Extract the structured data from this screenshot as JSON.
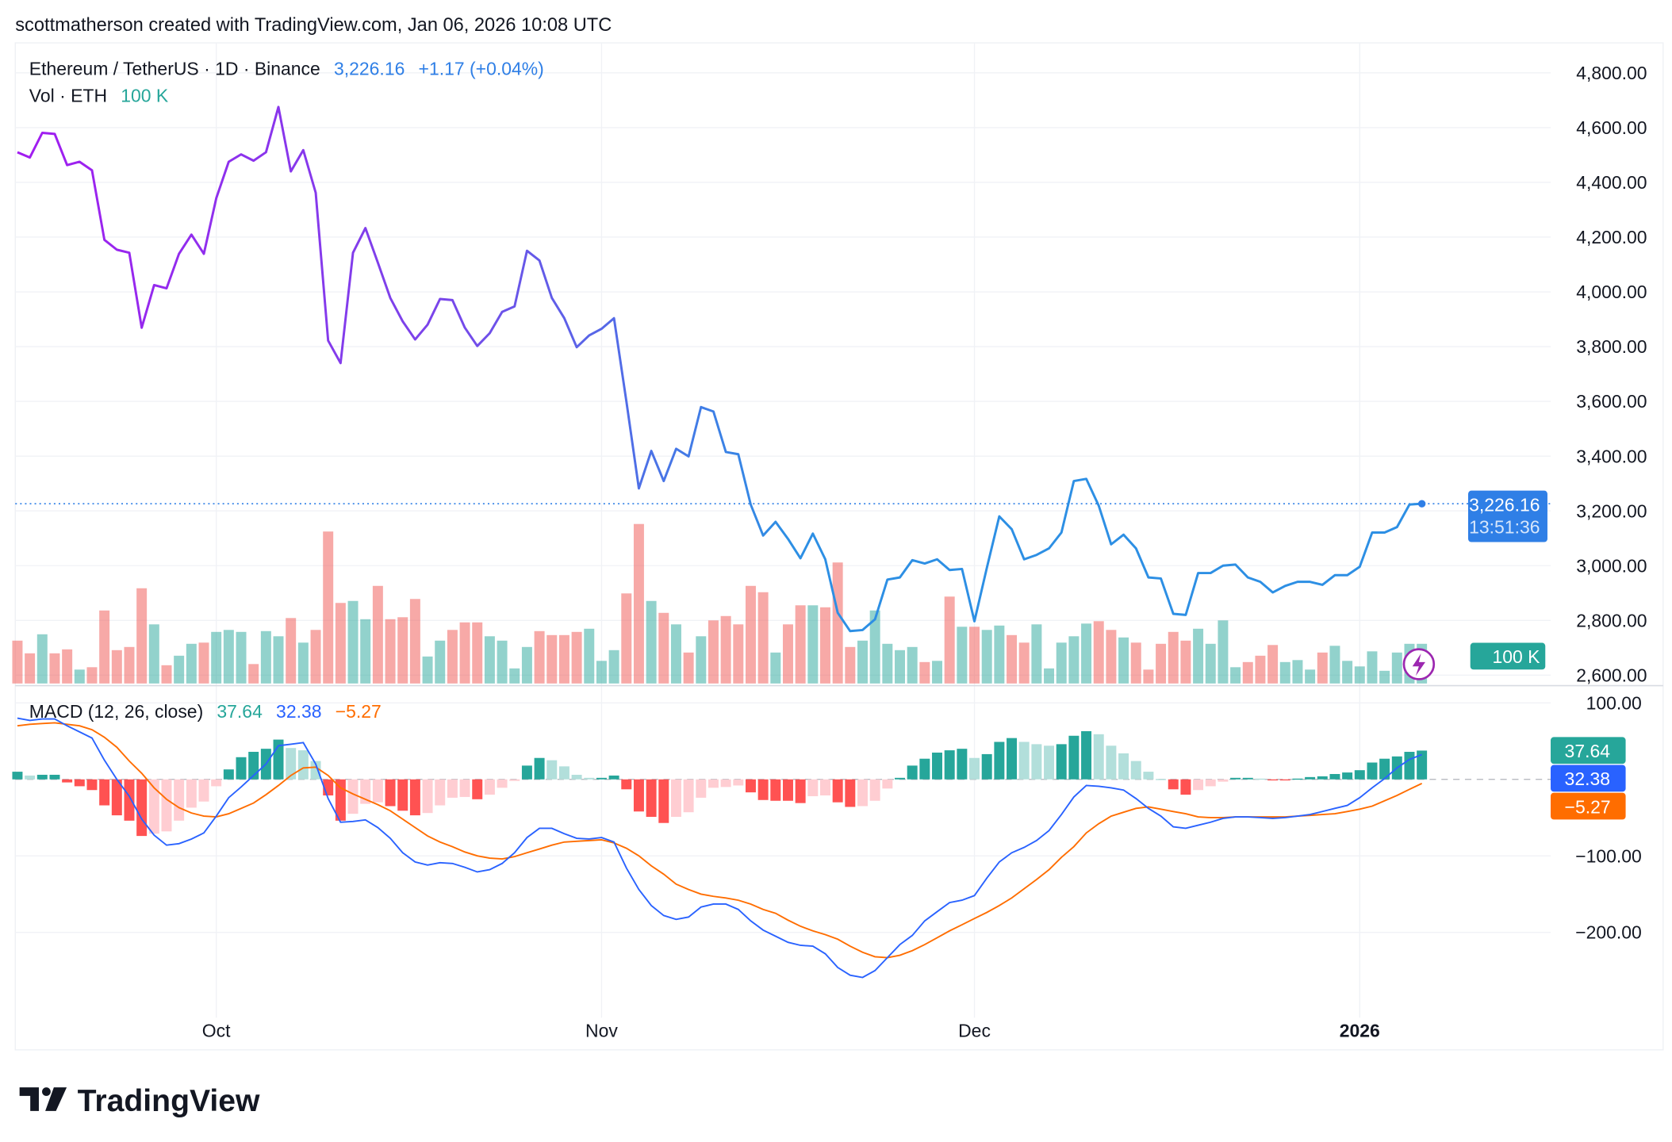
{
  "header": {
    "caption": "scottmatherson created with TradingView.com, Jan 06, 2026 10:08 UTC"
  },
  "legend": {
    "symbol": "Ethereum / TetherUS · 1D · Binance",
    "price": "3,226.16",
    "change": "+1.17 (+0.04%)",
    "vol_label": "Vol · ETH",
    "vol_value": "100 K",
    "macd_label": "MACD (12, 26, close)",
    "macd_hist": "37.64",
    "macd_line": "32.38",
    "macd_signal": "−5.27"
  },
  "badges": {
    "price": "3,226.16",
    "countdown": "13:51:36",
    "volume": "100 K",
    "hist": "37.64",
    "macd": "32.38",
    "signal": "−5.27"
  },
  "colors": {
    "up": "#26a69a",
    "down": "#ef5350",
    "price_start": "#a21cf0",
    "price_end": "#2d8fe4",
    "macd": "#2962ff",
    "signal": "#ff6d00",
    "hist_up_strong": "#26a69a",
    "hist_up_weak": "#b2dfdb",
    "hist_down_strong": "#ff5252",
    "hist_down_weak": "#ffcdd2",
    "last_price": "#2f7fe6"
  },
  "logo": {
    "text": "TradingView"
  },
  "chart_data": [
    {
      "type": "line",
      "title": "Ethereum / TetherUS · 1D · Binance",
      "ylim": [
        2600,
        4800
      ],
      "y_ticks": [
        "4,800.00",
        "4,600.00",
        "4,400.00",
        "4,200.00",
        "4,000.00",
        "3,800.00",
        "3,600.00",
        "3,400.00",
        "3,200.00",
        "3,000.00",
        "2,800.00",
        "2,600.00"
      ],
      "y_tick_values": [
        4800,
        4600,
        4400,
        4200,
        4000,
        3800,
        3600,
        3400,
        3200,
        3000,
        2800,
        2600
      ],
      "x_ticks": [
        {
          "label": "Oct",
          "date": "2025-10-01"
        },
        {
          "label": "Nov",
          "date": "2025-11-01"
        },
        {
          "label": "Dec",
          "date": "2025-12-01"
        },
        {
          "label": "2026",
          "date": "2026-01-01"
        }
      ],
      "grid": true,
      "dates": [
        "2025-09-15",
        "2025-09-16",
        "2025-09-17",
        "2025-09-18",
        "2025-09-19",
        "2025-09-20",
        "2025-09-21",
        "2025-09-22",
        "2025-09-23",
        "2025-09-24",
        "2025-09-25",
        "2025-09-26",
        "2025-09-27",
        "2025-09-28",
        "2025-09-29",
        "2025-09-30",
        "2025-10-01",
        "2025-10-02",
        "2025-10-03",
        "2025-10-04",
        "2025-10-05",
        "2025-10-06",
        "2025-10-07",
        "2025-10-08",
        "2025-10-09",
        "2025-10-10",
        "2025-10-11",
        "2025-10-12",
        "2025-10-13",
        "2025-10-14",
        "2025-10-15",
        "2025-10-16",
        "2025-10-17",
        "2025-10-18",
        "2025-10-19",
        "2025-10-20",
        "2025-10-21",
        "2025-10-22",
        "2025-10-23",
        "2025-10-24",
        "2025-10-25",
        "2025-10-26",
        "2025-10-27",
        "2025-10-28",
        "2025-10-29",
        "2025-10-30",
        "2025-10-31",
        "2025-11-01",
        "2025-11-02",
        "2025-11-03",
        "2025-11-04",
        "2025-11-05",
        "2025-11-06",
        "2025-11-07",
        "2025-11-08",
        "2025-11-09",
        "2025-11-10",
        "2025-11-11",
        "2025-11-12",
        "2025-11-13",
        "2025-11-14",
        "2025-11-15",
        "2025-11-16",
        "2025-11-17",
        "2025-11-18",
        "2025-11-19",
        "2025-11-20",
        "2025-11-21",
        "2025-11-22",
        "2025-11-23",
        "2025-11-24",
        "2025-11-25",
        "2025-11-26",
        "2025-11-27",
        "2025-11-28",
        "2025-11-29",
        "2025-11-30",
        "2025-12-01",
        "2025-12-02",
        "2025-12-03",
        "2025-12-04",
        "2025-12-05",
        "2025-12-06",
        "2025-12-07",
        "2025-12-08",
        "2025-12-09",
        "2025-12-10",
        "2025-12-11",
        "2025-12-12",
        "2025-12-13",
        "2025-12-14",
        "2025-12-15",
        "2025-12-16",
        "2025-12-17",
        "2025-12-18",
        "2025-12-19",
        "2025-12-20",
        "2025-12-21",
        "2025-12-22",
        "2025-12-23",
        "2025-12-24",
        "2025-12-25",
        "2025-12-26",
        "2025-12-27",
        "2025-12-28",
        "2025-12-29",
        "2025-12-30",
        "2025-12-31",
        "2026-01-01",
        "2026-01-02",
        "2026-01-03",
        "2026-01-04",
        "2026-01-05",
        "2026-01-06"
      ],
      "close": [
        4510,
        4491,
        4581,
        4577,
        4463,
        4475,
        4444,
        4190,
        4154,
        4143,
        3869,
        4025,
        4013,
        4139,
        4209,
        4139,
        4342,
        4475,
        4502,
        4479,
        4510,
        4675,
        4440,
        4518,
        4362,
        3822,
        3740,
        4143,
        4233,
        4107,
        3978,
        3892,
        3826,
        3880,
        3974,
        3970,
        3869,
        3802,
        3849,
        3927,
        3947,
        4150,
        4115,
        3978,
        3904,
        3798,
        3841,
        3865,
        3904,
        3599,
        3282,
        3419,
        3309,
        3427,
        3399,
        3579,
        3563,
        3415,
        3407,
        3223,
        3110,
        3160,
        3098,
        3027,
        3117,
        3023,
        2828,
        2761,
        2765,
        2804,
        2949,
        2957,
        3020,
        3008,
        3023,
        2984,
        2988,
        2797,
        2992,
        3180,
        3133,
        3023,
        3039,
        3063,
        3121,
        3309,
        3317,
        3219,
        3078,
        3113,
        3063,
        2957,
        2953,
        2824,
        2820,
        2973,
        2973,
        3000,
        3004,
        2957,
        2941,
        2902,
        2926,
        2941,
        2941,
        2930,
        2965,
        2965,
        2996,
        3121,
        3121,
        3141,
        3223,
        3226.16
      ],
      "last_price": 3226.16
    },
    {
      "type": "bar",
      "series_name": "Vol · ETH",
      "unit": "K",
      "values": [
        108,
        76,
        124,
        76,
        86,
        35,
        41,
        184,
        84,
        92,
        240,
        149,
        46,
        70,
        100,
        103,
        130,
        135,
        130,
        49,
        132,
        119,
        165,
        103,
        135,
        383,
        203,
        208,
        162,
        246,
        162,
        167,
        213,
        68,
        108,
        135,
        154,
        154,
        119,
        108,
        38,
        92,
        132,
        122,
        122,
        130,
        138,
        57,
        84,
        227,
        402,
        208,
        178,
        149,
        78,
        119,
        159,
        170,
        149,
        246,
        230,
        78,
        149,
        197,
        197,
        192,
        305,
        92,
        108,
        184,
        100,
        84,
        92,
        54,
        57,
        219,
        143,
        143,
        135,
        146,
        122,
        103,
        149,
        38,
        103,
        119,
        151,
        157,
        135,
        116,
        103,
        35,
        100,
        130,
        108,
        138,
        100,
        159,
        41,
        54,
        70,
        97,
        54,
        59,
        35,
        78,
        95,
        57,
        43,
        81,
        32,
        78,
        100,
        100
      ]
    },
    {
      "type": "bar+line",
      "title": "MACD (12, 26, close)",
      "ylim": [
        -300,
        120
      ],
      "y_ticks": [
        "100.00",
        "−100.00",
        "−200.00"
      ],
      "y_tick_values": [
        100,
        -100,
        -200
      ],
      "histogram": [
        10,
        5,
        6,
        6,
        -4,
        -9,
        -14,
        -34,
        -47,
        -54,
        -74,
        -71,
        -68,
        -54,
        -37,
        -29,
        -9,
        13,
        29,
        36,
        40,
        52,
        41,
        38,
        24,
        -21,
        -54,
        -45,
        -32,
        -30,
        -35,
        -41,
        -47,
        -44,
        -34,
        -24,
        -23,
        -26,
        -20,
        -11,
        -2,
        18,
        28,
        25,
        17,
        6,
        2,
        2,
        5,
        -13,
        -42,
        -49,
        -57,
        -49,
        -43,
        -24,
        -11,
        -10,
        -8,
        -17,
        -27,
        -28,
        -28,
        -31,
        -22,
        -21,
        -30,
        -36,
        -35,
        -28,
        -12,
        2,
        18,
        27,
        35,
        38,
        40,
        28,
        33,
        49,
        54,
        49,
        46,
        44,
        46,
        57,
        63,
        59,
        44,
        34,
        24,
        10,
        0.5,
        -13,
        -20,
        -14,
        -9,
        -3,
        2,
        2,
        1,
        -1,
        -1,
        1,
        3,
        4,
        7,
        9,
        12,
        22,
        27,
        30,
        36,
        37.64
      ],
      "macd": [
        80,
        77,
        79,
        79,
        70,
        62,
        54,
        25,
        0,
        -22,
        -52,
        -73,
        -86,
        -84,
        -78,
        -70,
        -48,
        -24,
        -10,
        5,
        20,
        44,
        46,
        48,
        20,
        -25,
        -56,
        -55,
        -53,
        -63,
        -77,
        -96,
        -108,
        -112,
        -109,
        -110,
        -115,
        -121,
        -118,
        -110,
        -96,
        -76,
        -64,
        -64,
        -71,
        -77,
        -78,
        -76,
        -82,
        -116,
        -144,
        -165,
        -178,
        -183,
        -180,
        -167,
        -163,
        -163,
        -170,
        -185,
        -197,
        -205,
        -213,
        -217,
        -218,
        -228,
        -246,
        -256,
        -259,
        -250,
        -233,
        -216,
        -204,
        -185,
        -173,
        -161,
        -158,
        -152,
        -129,
        -108,
        -96,
        -89,
        -80,
        -67,
        -46,
        -23,
        -8,
        -9,
        -11,
        -14,
        -25,
        -38,
        -48,
        -62,
        -64,
        -60,
        -56,
        -51,
        -49,
        -49,
        -50,
        -51,
        -50,
        -48,
        -46,
        -42,
        -38,
        -34,
        -24,
        -11,
        1,
        15,
        26,
        32.38
      ],
      "signal": [
        70,
        72,
        73,
        74,
        72,
        70,
        65,
        55,
        42,
        24,
        8,
        -11,
        -26,
        -37,
        -44,
        -48,
        -49,
        -45,
        -38,
        -31,
        -20,
        -8,
        5,
        15,
        16,
        5,
        -11,
        -19,
        -26,
        -33,
        -41,
        -52,
        -63,
        -74,
        -82,
        -88,
        -95,
        -100,
        -103,
        -104,
        -101,
        -96,
        -91,
        -86,
        -82,
        -81,
        -80,
        -79,
        -83,
        -90,
        -100,
        -113,
        -124,
        -137,
        -144,
        -150,
        -153,
        -155,
        -158,
        -163,
        -170,
        -175,
        -184,
        -192,
        -198,
        -203,
        -209,
        -218,
        -226,
        -232,
        -233,
        -230,
        -224,
        -216,
        -207,
        -198,
        -190,
        -182,
        -174,
        -165,
        -155,
        -143,
        -131,
        -118,
        -102,
        -88,
        -70,
        -58,
        -48,
        -43,
        -38,
        -36,
        -39,
        -42,
        -45,
        -49,
        -50,
        -50,
        -49,
        -49,
        -49,
        -49,
        -49,
        -48,
        -47,
        -46,
        -45,
        -42,
        -39,
        -35,
        -28,
        -21,
        -13,
        -5.27
      ]
    }
  ]
}
